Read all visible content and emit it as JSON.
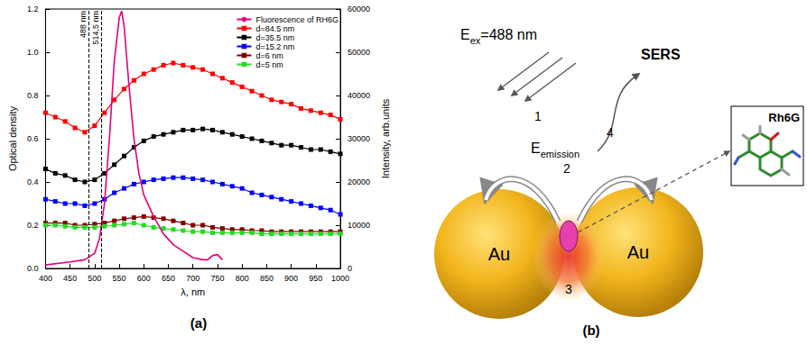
{
  "chart_data": {
    "type": "line",
    "panel_label": "(a)",
    "x_label": "λ, nm",
    "y_label": "Optical density",
    "y2_label": "Intensity, arb.units",
    "xlim": [
      400,
      1000
    ],
    "xticks": [
      400,
      450,
      500,
      550,
      600,
      650,
      700,
      750,
      800,
      850,
      900,
      950,
      1000
    ],
    "ylim": [
      0,
      1.2
    ],
    "yticks": [
      {
        "value": 0,
        "label": "0.0"
      },
      {
        "value": 0.2,
        "label": "0.2"
      },
      {
        "value": 0.4,
        "label": "0.4"
      },
      {
        "value": 0.6,
        "label": "0.6"
      },
      {
        "value": 0.8,
        "label": "0.8"
      },
      {
        "value": 1.0,
        "label": "1.0"
      },
      {
        "value": 1.2,
        "label": "1.2"
      }
    ],
    "y2lim": [
      0,
      60000
    ],
    "y2ticks": [
      0,
      10000,
      20000,
      30000,
      40000,
      50000,
      60000
    ],
    "grid": false,
    "legend": "upper right",
    "marker": "square",
    "vlines": [
      {
        "x": 488,
        "label": "488 nm"
      },
      {
        "x": 514.5,
        "label": "514,5 nm"
      }
    ],
    "x": [
      400,
      420,
      440,
      460,
      480,
      500,
      520,
      540,
      560,
      580,
      600,
      620,
      640,
      660,
      680,
      700,
      720,
      740,
      760,
      780,
      800,
      820,
      840,
      860,
      880,
      900,
      920,
      940,
      960,
      980,
      1000
    ],
    "series": [
      {
        "name": "Fluorescence of RH6G",
        "color": "#e6007e",
        "axis": "y2",
        "marker": "none",
        "x": [
          400,
          450,
          480,
          500,
          510,
          520,
          530,
          540,
          550,
          555,
          560,
          570,
          580,
          590,
          600,
          620,
          640,
          660,
          680,
          700,
          720,
          730,
          740,
          750,
          760
        ],
        "values": [
          800,
          1500,
          2000,
          3500,
          7000,
          15000,
          30000,
          48000,
          58000,
          59500,
          56000,
          42000,
          30000,
          22000,
          17000,
          12000,
          8000,
          5500,
          4000,
          2500,
          2000,
          2000,
          3000,
          3200,
          2000
        ]
      },
      {
        "name": "d=84.5 nm",
        "color": "#ff0000",
        "values": [
          0.72,
          0.7,
          0.68,
          0.65,
          0.63,
          0.66,
          0.72,
          0.78,
          0.83,
          0.87,
          0.9,
          0.92,
          0.94,
          0.95,
          0.94,
          0.93,
          0.92,
          0.9,
          0.88,
          0.86,
          0.84,
          0.82,
          0.8,
          0.78,
          0.77,
          0.76,
          0.74,
          0.73,
          0.72,
          0.71,
          0.69
        ]
      },
      {
        "name": "d=35.5 nm",
        "color": "#000000",
        "values": [
          0.46,
          0.44,
          0.43,
          0.41,
          0.4,
          0.41,
          0.44,
          0.48,
          0.52,
          0.56,
          0.59,
          0.61,
          0.62,
          0.63,
          0.64,
          0.64,
          0.645,
          0.64,
          0.63,
          0.62,
          0.61,
          0.6,
          0.59,
          0.58,
          0.57,
          0.57,
          0.56,
          0.55,
          0.55,
          0.54,
          0.53
        ]
      },
      {
        "name": "d=15.2 nm",
        "color": "#0000ff",
        "values": [
          0.32,
          0.31,
          0.3,
          0.3,
          0.29,
          0.3,
          0.32,
          0.35,
          0.37,
          0.39,
          0.4,
          0.41,
          0.415,
          0.42,
          0.42,
          0.415,
          0.41,
          0.4,
          0.39,
          0.38,
          0.37,
          0.35,
          0.34,
          0.33,
          0.32,
          0.31,
          0.3,
          0.29,
          0.28,
          0.27,
          0.25
        ]
      },
      {
        "name": "d=6 nm",
        "color": "#800000",
        "values": [
          0.21,
          0.21,
          0.21,
          0.2,
          0.2,
          0.205,
          0.21,
          0.22,
          0.23,
          0.235,
          0.24,
          0.235,
          0.23,
          0.22,
          0.21,
          0.2,
          0.2,
          0.19,
          0.185,
          0.18,
          0.18,
          0.175,
          0.175,
          0.17,
          0.17,
          0.17,
          0.17,
          0.17,
          0.17,
          0.17,
          0.17
        ]
      },
      {
        "name": "d=5 nm",
        "color": "#22dd22",
        "values": [
          0.2,
          0.2,
          0.195,
          0.19,
          0.19,
          0.19,
          0.195,
          0.2,
          0.205,
          0.21,
          0.2,
          0.19,
          0.185,
          0.18,
          0.175,
          0.17,
          0.17,
          0.165,
          0.165,
          0.165,
          0.165,
          0.165,
          0.16,
          0.16,
          0.16,
          0.16,
          0.16,
          0.16,
          0.16,
          0.16,
          0.16
        ]
      }
    ]
  },
  "diagram": {
    "panel_label": "(b)",
    "excitation": {
      "symbol": "E",
      "subscript": "ex",
      "text": "=488 nm"
    },
    "emission": {
      "symbol": "E",
      "subscript": "emission"
    },
    "steps": [
      "1",
      "2",
      "3",
      "4"
    ],
    "output": "SERS",
    "particles": [
      "Au",
      "Au"
    ],
    "molecule": "Rh6G"
  }
}
